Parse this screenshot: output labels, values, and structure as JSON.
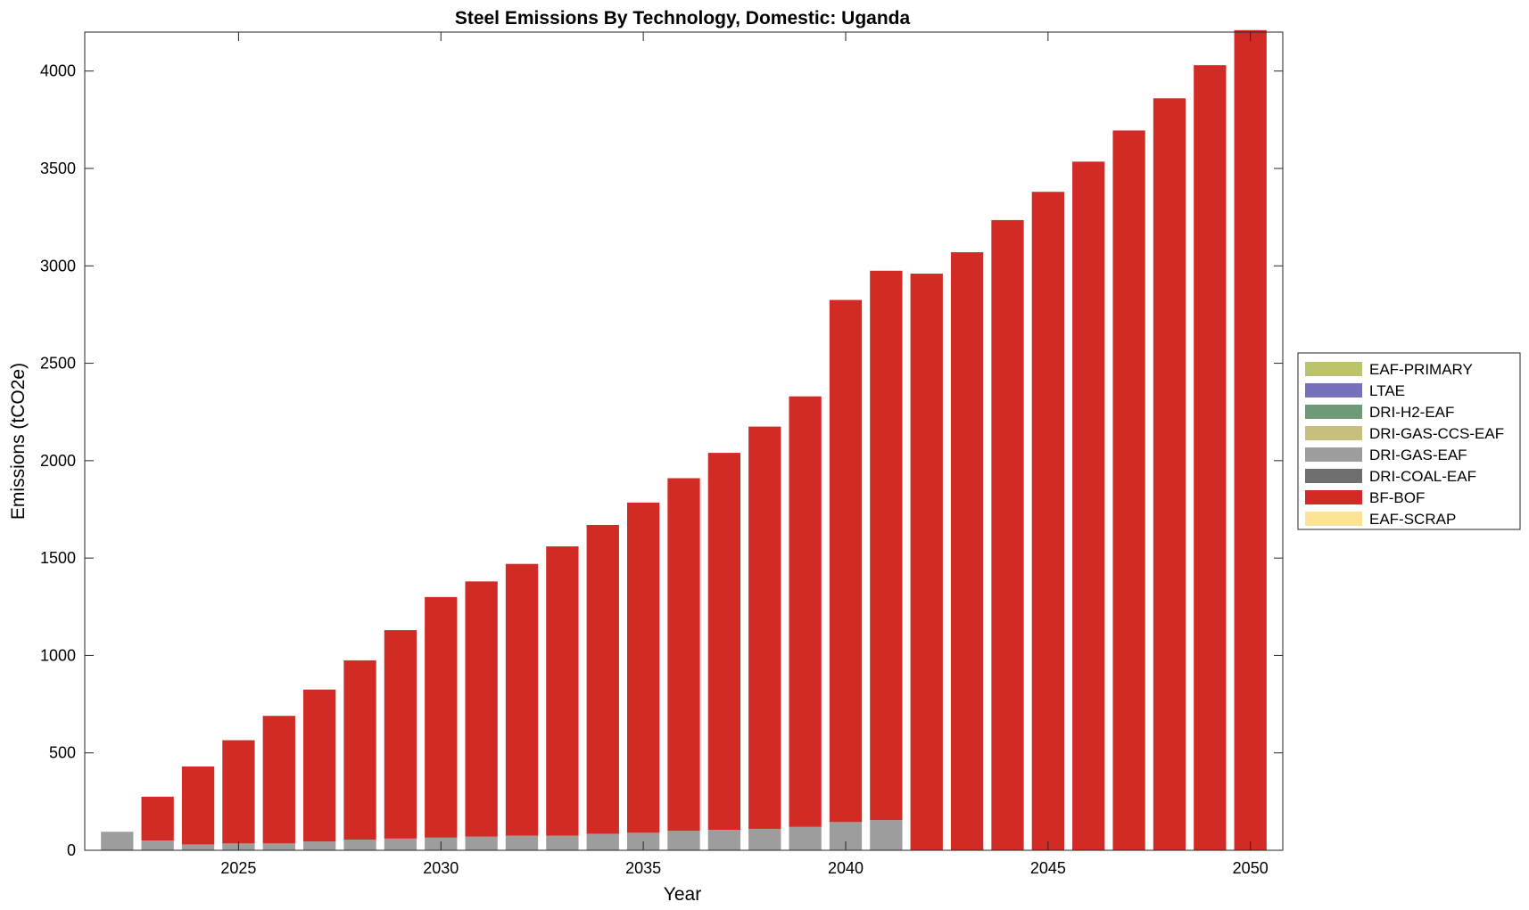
{
  "chart_data": {
    "type": "bar",
    "stacked": true,
    "title": "Steel Emissions By Technology, Domestic: Uganda",
    "xlabel": "Year",
    "ylabel": "Emissions (tCO2e)",
    "xlim": [
      2021.2,
      2050.8
    ],
    "ylim": [
      0,
      4200
    ],
    "xticks": [
      2025,
      2030,
      2035,
      2040,
      2045,
      2050
    ],
    "yticks": [
      0,
      500,
      1000,
      1500,
      2000,
      2500,
      3000,
      3500,
      4000
    ],
    "legend_position": "right-outside",
    "categories": [
      2022,
      2023,
      2024,
      2025,
      2026,
      2027,
      2028,
      2029,
      2030,
      2031,
      2032,
      2033,
      2034,
      2035,
      2036,
      2037,
      2038,
      2039,
      2040,
      2041,
      2042,
      2043,
      2044,
      2045,
      2046,
      2047,
      2048,
      2049,
      2050
    ],
    "series": [
      {
        "name": "EAF-PRIMARY",
        "color": "#bcc36c",
        "values": [
          0,
          0,
          0,
          0,
          0,
          0,
          0,
          0,
          0,
          0,
          0,
          0,
          0,
          0,
          0,
          0,
          0,
          0,
          0,
          0,
          0,
          0,
          0,
          0,
          0,
          0,
          0,
          0,
          0
        ]
      },
      {
        "name": "LTAE",
        "color": "#7570b9",
        "values": [
          0,
          0,
          0,
          0,
          0,
          0,
          0,
          0,
          0,
          0,
          0,
          0,
          0,
          0,
          0,
          0,
          0,
          0,
          0,
          0,
          0,
          0,
          0,
          0,
          0,
          0,
          0,
          0,
          0
        ]
      },
      {
        "name": "DRI-H2-EAF",
        "color": "#6f9a77",
        "values": [
          0,
          0,
          0,
          0,
          0,
          0,
          0,
          0,
          0,
          0,
          0,
          0,
          0,
          0,
          0,
          0,
          0,
          0,
          0,
          0,
          0,
          0,
          0,
          0,
          0,
          0,
          0,
          0,
          0
        ]
      },
      {
        "name": "DRI-GAS-CCS-EAF",
        "color": "#c7bf7e",
        "values": [
          0,
          0,
          0,
          0,
          0,
          0,
          0,
          0,
          0,
          0,
          0,
          0,
          0,
          0,
          0,
          0,
          0,
          0,
          0,
          0,
          0,
          0,
          0,
          0,
          0,
          0,
          0,
          0,
          0
        ]
      },
      {
        "name": "DRI-GAS-EAF",
        "color": "#9d9d9d",
        "values": [
          95,
          50,
          30,
          35,
          35,
          45,
          55,
          60,
          65,
          70,
          75,
          75,
          85,
          90,
          100,
          105,
          110,
          120,
          145,
          155,
          0,
          0,
          0,
          0,
          0,
          0,
          0,
          0,
          0
        ]
      },
      {
        "name": "DRI-COAL-EAF",
        "color": "#6e6e6e",
        "values": [
          0,
          0,
          0,
          0,
          0,
          0,
          0,
          0,
          0,
          0,
          0,
          0,
          0,
          0,
          0,
          0,
          0,
          0,
          0,
          0,
          0,
          0,
          0,
          0,
          0,
          0,
          0,
          0,
          0
        ]
      },
      {
        "name": "BF-BOF",
        "color": "#d22a25",
        "values": [
          0,
          225,
          400,
          530,
          655,
          780,
          920,
          1070,
          1235,
          1310,
          1395,
          1485,
          1585,
          1695,
          1810,
          1935,
          2065,
          2210,
          2680,
          2820,
          2960,
          3070,
          3235,
          3380,
          3535,
          3695,
          3860,
          4030,
          4210
        ]
      },
      {
        "name": "EAF-SCRAP",
        "color": "#fde396",
        "values": [
          0,
          0,
          0,
          0,
          0,
          0,
          0,
          0,
          0,
          0,
          0,
          0,
          0,
          0,
          0,
          0,
          0,
          0,
          0,
          0,
          0,
          0,
          0,
          0,
          0,
          0,
          0,
          0,
          0
        ]
      }
    ]
  }
}
